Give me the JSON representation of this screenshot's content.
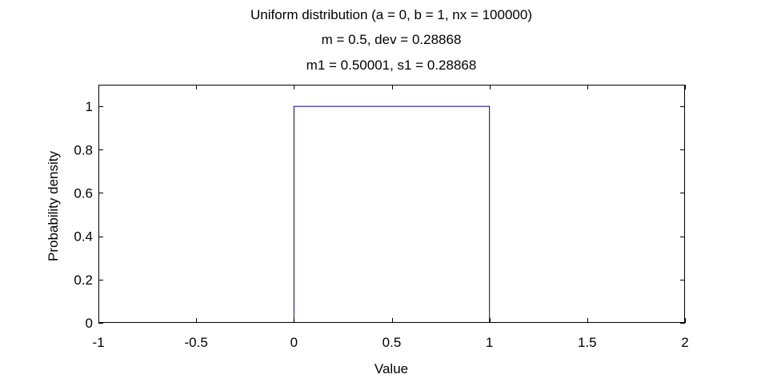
{
  "chart_data": {
    "type": "line",
    "title": [
      "Uniform distribution (a = 0, b = 1, nx = 100000)",
      "m = 0.5, dev = 0.28868",
      "m1 = 0.50001, s1 = 0.28868"
    ],
    "xlabel": "Value",
    "ylabel": "Probability density",
    "xlim": [
      -1,
      2
    ],
    "ylim": [
      0,
      1.1
    ],
    "xticks": [
      -1,
      -0.5,
      0,
      0.5,
      1,
      1.5,
      2
    ],
    "xtick_labels": [
      "-1",
      "-0.5",
      "0",
      "0.5",
      "1",
      "1.5",
      "2"
    ],
    "yticks": [
      0,
      0.2,
      0.4,
      0.6,
      0.8,
      1
    ],
    "ytick_labels": [
      "0",
      "0.2",
      "0.4",
      "0.6",
      "0.8",
      "1"
    ],
    "grid": false,
    "series": [
      {
        "color": "#00007f",
        "x": [
          0,
          0,
          1,
          1
        ],
        "y": [
          0,
          1,
          1,
          0
        ]
      }
    ]
  }
}
